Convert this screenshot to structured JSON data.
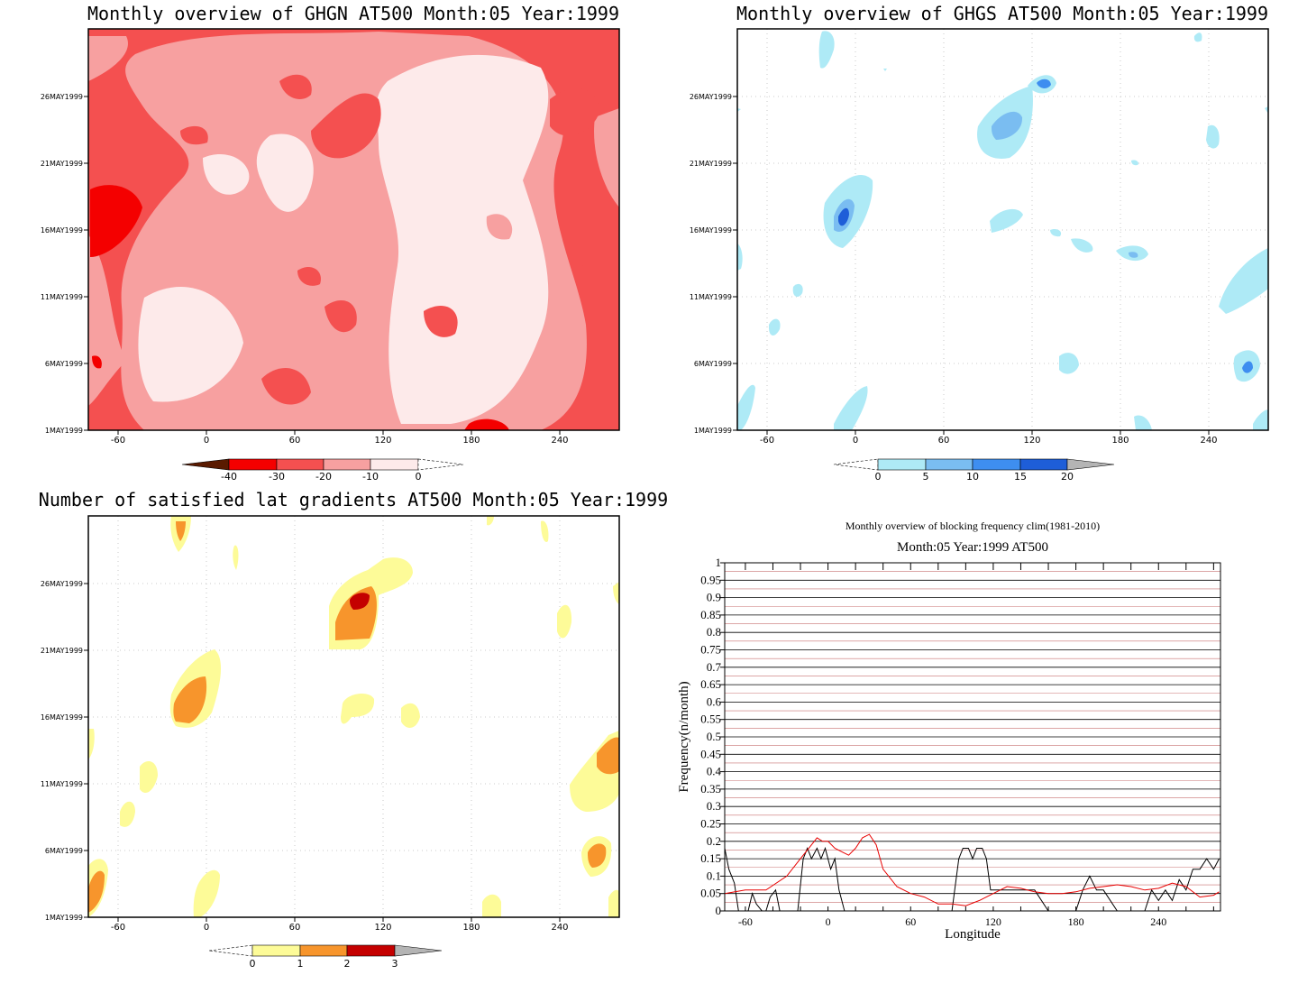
{
  "panels": {
    "north": {
      "title": "Monthly overview of GHGN AT500 Month:05 Year:1999"
    },
    "south": {
      "title": "Monthly overview of GHGS AT500 Month:05 Year:1999"
    },
    "lat": {
      "title": "Number of satisfied lat gradients AT500 Month:05 Year:1999"
    },
    "freq": {
      "title": "Monthly overview of blocking frequency clim(1981-2010)",
      "subtitle": "Month:05 Year:1999  AT500"
    }
  },
  "colors": {
    "north_levels": [
      "#5a1a00",
      "#f40000",
      "#f45050",
      "#f7a0a0",
      "#fdeaea"
    ],
    "south_levels": [
      "#aeeaf6",
      "#7abdf1",
      "#3e8ef0",
      "#1e5ed8",
      "#b4b4b4"
    ],
    "lat_levels": [
      "#fdfb98",
      "#f7952c",
      "#c40000",
      "#b4b4b4"
    ],
    "series_black": "#000000",
    "series_red": "#e80000"
  },
  "chart_data": [
    {
      "type": "heatmap",
      "title": "Monthly overview of GHGN AT500 Month:05 Year:1999",
      "x_ticks": [
        "-60",
        "0",
        "60",
        "120",
        "180",
        "240"
      ],
      "y_ticks": [
        "1MAY1999",
        "6MAY1999",
        "11MAY1999",
        "16MAY1999",
        "21MAY1999",
        "26MAY1999"
      ],
      "x_range": [
        -75,
        285
      ],
      "colorbar": [
        "-40",
        "-30",
        "-20",
        "-10",
        "0"
      ]
    },
    {
      "type": "heatmap",
      "title": "Monthly overview of GHGS AT500 Month:05 Year:1999",
      "x_ticks": [
        "-60",
        "0",
        "60",
        "120",
        "180",
        "240"
      ],
      "y_ticks": [
        "1MAY1999",
        "6MAY1999",
        "11MAY1999",
        "16MAY1999",
        "21MAY1999",
        "26MAY1999"
      ],
      "x_range": [
        -75,
        285
      ],
      "colorbar": [
        "0",
        "5",
        "10",
        "15",
        "20"
      ]
    },
    {
      "type": "heatmap",
      "title": "Number of satisfied lat gradients AT500 Month:05 Year:1999",
      "x_ticks": [
        "-60",
        "0",
        "60",
        "120",
        "180",
        "240"
      ],
      "y_ticks": [
        "1MAY1999",
        "6MAY1999",
        "11MAY1999",
        "16MAY1999",
        "21MAY1999",
        "26MAY1999"
      ],
      "x_range": [
        -75,
        285
      ],
      "colorbar": [
        "0",
        "1",
        "2",
        "3"
      ]
    },
    {
      "type": "line",
      "title": "Monthly overview of blocking frequency clim(1981-2010)",
      "subtitle": "Month:05 Year:1999  AT500",
      "xlabel": "Longitude",
      "ylabel": "Frequency(n/month)",
      "xlim": [
        -75,
        285
      ],
      "ylim": [
        0,
        1
      ],
      "x_ticks": [
        "-60",
        "0",
        "60",
        "120",
        "180",
        "240"
      ],
      "y_ticks": [
        "0",
        "0.05",
        "0.1",
        "0.15",
        "0.2",
        "0.25",
        "0.3",
        "0.35",
        "0.4",
        "0.45",
        "0.5",
        "0.55",
        "0.6",
        "0.65",
        "0.7",
        "0.75",
        "0.8",
        "0.85",
        "0.9",
        "0.95",
        "1"
      ],
      "series": [
        {
          "x": [
            -75,
            -72,
            -68,
            -65,
            -62,
            -58,
            -55,
            -52,
            -48,
            -45,
            -42,
            -38,
            -35,
            -32,
            -28,
            -25,
            -22,
            -18,
            -15,
            -12,
            -8,
            -5,
            -2,
            2,
            5,
            8,
            12,
            15,
            18,
            22,
            28,
            35,
            45,
            60,
            75,
            90,
            95,
            98,
            102,
            105,
            108,
            112,
            115,
            118,
            125,
            135,
            150,
            160,
            170,
            180,
            185,
            190,
            195,
            200,
            210,
            220,
            230,
            235,
            240,
            245,
            250,
            255,
            260,
            265,
            270,
            275,
            280,
            284
          ],
          "values": [
            0.18,
            0.12,
            0.08,
            0.0,
            0.0,
            0.0,
            0.05,
            0.02,
            0.0,
            0.0,
            0.04,
            0.06,
            0.0,
            0.0,
            0.0,
            0.0,
            0.0,
            0.15,
            0.18,
            0.15,
            0.18,
            0.15,
            0.18,
            0.12,
            0.15,
            0.06,
            0.0,
            0.0,
            0.0,
            0.0,
            0.0,
            0.0,
            0.0,
            0.0,
            0.0,
            0.0,
            0.15,
            0.18,
            0.18,
            0.15,
            0.18,
            0.18,
            0.15,
            0.06,
            0.06,
            0.06,
            0.06,
            0.0,
            0.0,
            0.0,
            0.06,
            0.1,
            0.06,
            0.06,
            0.0,
            0.0,
            0.0,
            0.06,
            0.03,
            0.06,
            0.03,
            0.09,
            0.06,
            0.12,
            0.12,
            0.15,
            0.12,
            0.15
          ]
        },
        {
          "x": [
            -75,
            -60,
            -45,
            -30,
            -20,
            -12,
            -8,
            -4,
            0,
            5,
            10,
            15,
            20,
            25,
            30,
            35,
            40,
            50,
            60,
            70,
            80,
            90,
            100,
            110,
            120,
            130,
            140,
            150,
            160,
            170,
            180,
            190,
            200,
            210,
            220,
            230,
            240,
            250,
            260,
            270,
            280,
            284
          ],
          "values": [
            0.05,
            0.06,
            0.06,
            0.1,
            0.15,
            0.19,
            0.21,
            0.2,
            0.2,
            0.18,
            0.17,
            0.16,
            0.18,
            0.21,
            0.22,
            0.19,
            0.12,
            0.07,
            0.05,
            0.04,
            0.02,
            0.02,
            0.015,
            0.03,
            0.05,
            0.07,
            0.065,
            0.055,
            0.05,
            0.05,
            0.055,
            0.065,
            0.07,
            0.075,
            0.07,
            0.06,
            0.065,
            0.08,
            0.07,
            0.04,
            0.045,
            0.055
          ]
        }
      ]
    }
  ]
}
